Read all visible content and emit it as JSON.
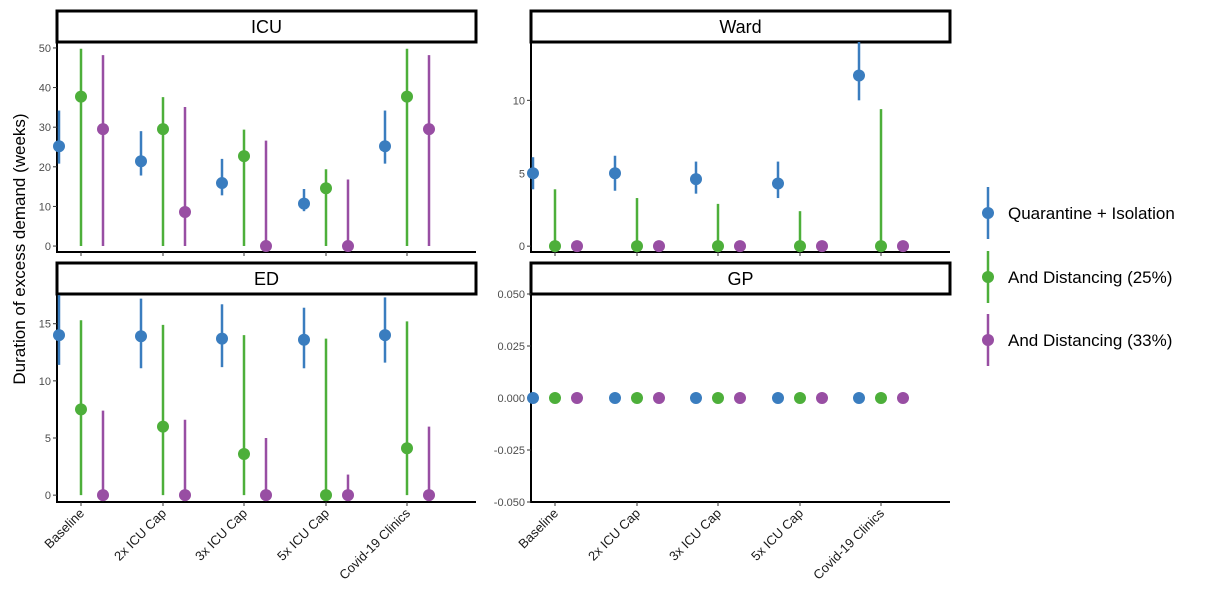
{
  "chart_data": {
    "type": "scatter",
    "ylabel": "Duration of excess demand (weeks)",
    "categories": [
      "Baseline",
      "2x ICU Cap",
      "3x ICU Cap",
      "5x ICU Cap",
      "Covid-19 Clinics"
    ],
    "series_styles": [
      {
        "name": "Quarantine + Isolation",
        "color": "#3a7dbf"
      },
      {
        "name": "And Distancing (25%)",
        "color": "#4daf3a"
      },
      {
        "name": "And Distancing (33%)",
        "color": "#984ea3"
      }
    ],
    "panels": [
      {
        "title": "ICU",
        "ylim": [
          -1.5,
          51.5
        ],
        "yticks": [
          0,
          10,
          20,
          30,
          40,
          50
        ],
        "tick_labels": [
          "0",
          "10",
          "20",
          "30",
          "40",
          "50"
        ],
        "series": [
          {
            "name": "Quarantine + Isolation",
            "values": [
              25.2,
              21.4,
              15.9,
              10.7,
              25.2
            ],
            "low": [
              20.8,
              17.8,
              12.8,
              8.8,
              20.8
            ],
            "high": [
              34.2,
              29.0,
              22.0,
              14.4,
              34.2
            ]
          },
          {
            "name": "And Distancing (25%)",
            "values": [
              37.7,
              29.5,
              22.7,
              14.6,
              37.7
            ],
            "low": [
              0,
              0,
              0,
              0,
              0
            ],
            "high": [
              49.8,
              37.6,
              29.4,
              19.4,
              49.8
            ]
          },
          {
            "name": "And Distancing (33%)",
            "values": [
              29.5,
              8.6,
              0,
              0,
              29.5
            ],
            "low": [
              0,
              0,
              0,
              0,
              0
            ],
            "high": [
              48.2,
              35.1,
              26.6,
              16.8,
              48.2
            ]
          }
        ]
      },
      {
        "title": "Ward",
        "ylim": [
          -0.4,
          14.0
        ],
        "yticks": [
          0,
          5,
          10
        ],
        "tick_labels": [
          "0",
          "5",
          "10"
        ],
        "series": [
          {
            "name": "Quarantine + Isolation",
            "values": [
              5.0,
              5.0,
              4.6,
              4.3,
              11.7
            ],
            "low": [
              3.9,
              3.8,
              3.6,
              3.3,
              10.0
            ],
            "high": [
              6.1,
              6.2,
              5.8,
              5.8,
              14.0
            ]
          },
          {
            "name": "And Distancing (25%)",
            "values": [
              0,
              0,
              0,
              0,
              0
            ],
            "low": [
              0,
              0,
              0,
              0,
              0
            ],
            "high": [
              3.9,
              3.3,
              2.9,
              2.4,
              9.4
            ]
          },
          {
            "name": "And Distancing (33%)",
            "values": [
              0,
              0,
              0,
              0,
              0
            ],
            "low": [
              0,
              0,
              0,
              0,
              0
            ],
            "high": [
              0,
              0,
              0,
              0,
              0
            ]
          }
        ]
      },
      {
        "title": "ED",
        "ylim": [
          -0.6,
          17.6
        ],
        "yticks": [
          0,
          5,
          10,
          15
        ],
        "tick_labels": [
          "0",
          "5",
          "10",
          "15"
        ],
        "series": [
          {
            "name": "Quarantine + Isolation",
            "values": [
              14.0,
              13.9,
              13.7,
              13.6,
              14.0
            ],
            "low": [
              11.4,
              11.1,
              11.2,
              11.1,
              11.6
            ],
            "high": [
              17.5,
              17.2,
              16.7,
              16.4,
              17.3
            ]
          },
          {
            "name": "And Distancing (25%)",
            "values": [
              7.5,
              6.0,
              3.6,
              0,
              4.1
            ],
            "low": [
              0,
              0,
              0,
              0,
              0
            ],
            "high": [
              15.3,
              14.9,
              14.0,
              13.7,
              15.2
            ]
          },
          {
            "name": "And Distancing (33%)",
            "values": [
              0,
              0,
              0,
              0,
              0
            ],
            "low": [
              0,
              0,
              0,
              0,
              0
            ],
            "high": [
              7.4,
              6.6,
              5.0,
              1.8,
              6.0
            ]
          }
        ]
      },
      {
        "title": "GP",
        "ylim": [
          -0.05,
          0.05
        ],
        "yticks": [
          -0.05,
          -0.025,
          0,
          0.025,
          0.05
        ],
        "tick_labels": [
          "-0.050",
          "-0.025",
          "0.000",
          "0.025",
          "0.050"
        ],
        "series": [
          {
            "name": "Quarantine + Isolation",
            "values": [
              0,
              0,
              0,
              0,
              0
            ],
            "low": [
              0,
              0,
              0,
              0,
              0
            ],
            "high": [
              0,
              0,
              0,
              0,
              0
            ]
          },
          {
            "name": "And Distancing (25%)",
            "values": [
              0,
              0,
              0,
              0,
              0
            ],
            "low": [
              0,
              0,
              0,
              0,
              0
            ],
            "high": [
              0,
              0,
              0,
              0,
              0
            ]
          },
          {
            "name": "And Distancing (33%)",
            "values": [
              0,
              0,
              0,
              0,
              0
            ],
            "low": [
              0,
              0,
              0,
              0,
              0
            ],
            "high": [
              0,
              0,
              0,
              0,
              0
            ]
          }
        ]
      }
    ],
    "legend": {
      "position": "right",
      "entries": [
        "Quarantine + Isolation",
        "And Distancing (25%)",
        "And Distancing (33%)"
      ]
    },
    "grid": false
  }
}
